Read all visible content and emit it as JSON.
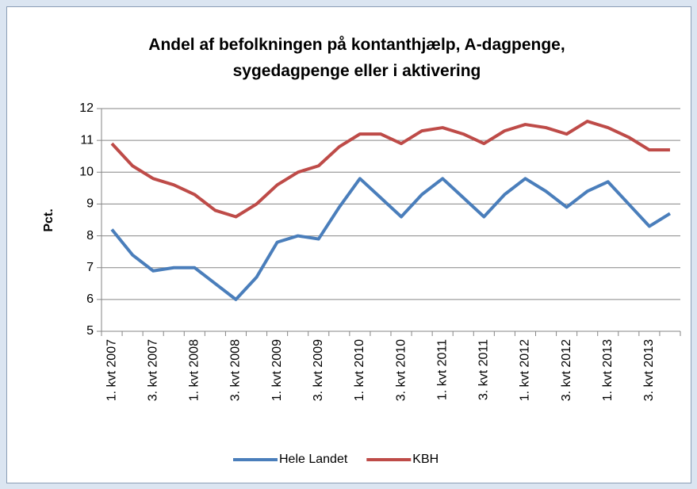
{
  "chart_data": {
    "type": "line",
    "title": "Andel af befolkningen på kontanthjælp, A-dagpenge, sygedagpenge eller i aktivering",
    "y_label": "Pct.",
    "categories": [
      "1. kvt 2007",
      null,
      "3. kvt 2007",
      null,
      "1. kvt 2008",
      null,
      "3. kvt 2008",
      null,
      "1. kvt 2009",
      null,
      "3. kvt 2009",
      null,
      "1. kvt 2010",
      null,
      "3. kvt 2010",
      null,
      "1. kvt 2011",
      null,
      "3. kvt 2011",
      null,
      "1. kvt 2012",
      null,
      "3. kvt 2012",
      null,
      "1. kvt 2013",
      null,
      "3. kvt 2013",
      null
    ],
    "series": [
      {
        "name": "Hele Landet",
        "color": "#4a7ebb",
        "values": [
          8.2,
          7.4,
          6.9,
          7.0,
          7.0,
          6.5,
          6.0,
          6.7,
          7.8,
          8.0,
          7.9,
          8.9,
          9.8,
          9.2,
          8.6,
          9.3,
          9.8,
          9.2,
          8.6,
          9.3,
          9.8,
          9.4,
          8.9,
          9.4,
          9.7,
          9.0,
          8.3,
          8.7
        ]
      },
      {
        "name": "KBH",
        "color": "#be4b48",
        "values": [
          10.9,
          10.2,
          9.8,
          9.6,
          9.3,
          8.8,
          8.6,
          9.0,
          9.6,
          10.0,
          10.2,
          10.8,
          11.2,
          11.2,
          10.9,
          11.3,
          11.4,
          11.2,
          10.9,
          11.3,
          11.5,
          11.4,
          11.2,
          11.6,
          11.4,
          11.1,
          10.7,
          10.7
        ]
      }
    ],
    "ylim": [
      5,
      12
    ],
    "yticks": [
      5,
      6,
      7,
      8,
      9,
      10,
      11,
      12
    ],
    "grid": true,
    "legend": "bottom"
  }
}
